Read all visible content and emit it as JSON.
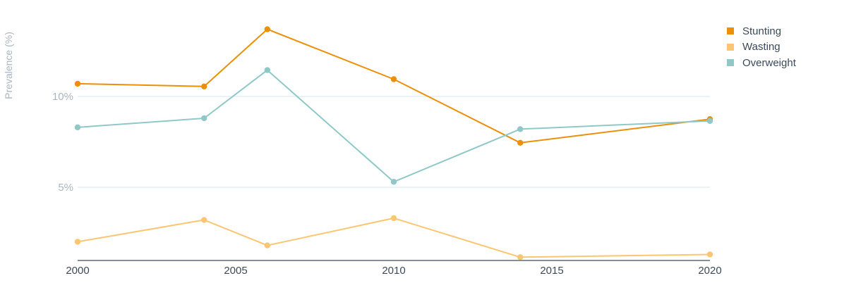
{
  "chart_data": {
    "type": "line",
    "title": "",
    "xlabel": "",
    "ylabel": "Prevalence (%)",
    "x": [
      2000,
      2004,
      2006,
      2010,
      2014,
      2020
    ],
    "xticks": [
      2000,
      2005,
      2010,
      2015,
      2020
    ],
    "xtick_labels": [
      "2000",
      "2005",
      "2010",
      "2015",
      "2020"
    ],
    "yticks": [
      5,
      10
    ],
    "ytick_labels": [
      "5%",
      "10%"
    ],
    "xlim": [
      2000,
      2020
    ],
    "ylim": [
      1,
      14.5
    ],
    "grid": true,
    "legend_position": "top-right",
    "series": [
      {
        "name": "Stunting",
        "color": "#ec8f0b",
        "values": [
          10.7,
          10.55,
          13.7,
          10.95,
          7.45,
          8.75
        ]
      },
      {
        "name": "Wasting",
        "color": "#fbc673",
        "values": [
          2.0,
          3.2,
          1.8,
          3.3,
          1.15,
          1.3
        ]
      },
      {
        "name": "Overweight",
        "color": "#90c8c8",
        "values": [
          8.3,
          8.8,
          11.45,
          5.3,
          8.2,
          8.65
        ]
      }
    ]
  }
}
